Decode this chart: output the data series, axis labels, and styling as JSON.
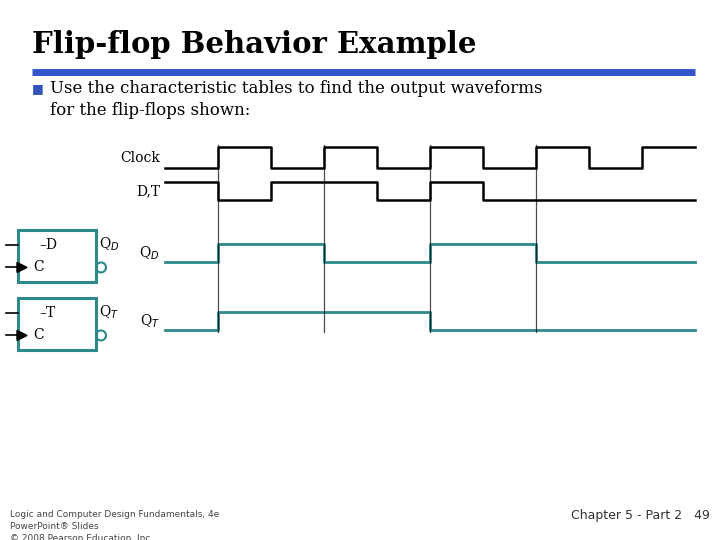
{
  "title": "Flip-flop Behavior Example",
  "bg_color": "#ffffff",
  "title_color": "#000000",
  "subtitle_color": "#000000",
  "bullet_color": "#3355bb",
  "blue_bar_color": "#3355cc",
  "teal_color": "#2d8a8a",
  "black_color": "#000000",
  "footer_left": "Logic and Computer Design Fundamentals, 4e\nPowerPoint® Slides\n© 2008 Pearson Education, Inc.",
  "footer_right": "Chapter 5 - Part 2   49",
  "clock_x": [
    0,
    1,
    1,
    2,
    2,
    3,
    3,
    4,
    4,
    5,
    5,
    6,
    6,
    7,
    7,
    8,
    8,
    9,
    9,
    10
  ],
  "clock_y": [
    0,
    0,
    1,
    1,
    0,
    0,
    1,
    1,
    0,
    0,
    1,
    1,
    0,
    0,
    1,
    1,
    0,
    0,
    1,
    1
  ],
  "dt_x": [
    0,
    1,
    1,
    2,
    2,
    4,
    4,
    5,
    5,
    6,
    6,
    10
  ],
  "dt_y": [
    1,
    1,
    0,
    0,
    1,
    1,
    0,
    0,
    1,
    1,
    0,
    0
  ],
  "qd_x": [
    0,
    1,
    1,
    3,
    3,
    5,
    5,
    7,
    7,
    10
  ],
  "qd_y": [
    0,
    0,
    1,
    1,
    0,
    0,
    1,
    1,
    0,
    0
  ],
  "qt_x": [
    0,
    1,
    1,
    5,
    5,
    10
  ],
  "qt_y": [
    0,
    0,
    1,
    1,
    0,
    0
  ],
  "vline_times": [
    1,
    3,
    5,
    7
  ],
  "teal_lw": 2.0,
  "black_lw": 1.8
}
